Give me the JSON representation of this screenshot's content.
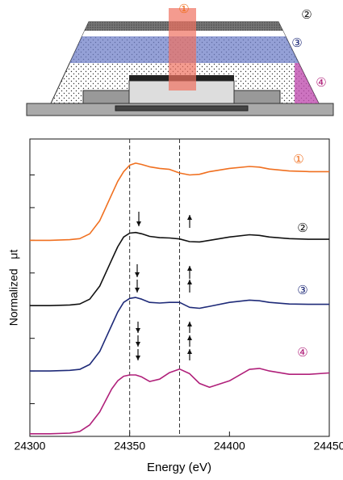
{
  "schematic": {
    "labels": [
      "①",
      "②",
      "③",
      "④"
    ]
  },
  "chart_data": {
    "type": "line",
    "x_label": "Energy (eV)",
    "y_label": "Normalized   μt",
    "x": [
      24300,
      24310,
      24320,
      24325,
      24330,
      24335,
      24338,
      24341,
      24344,
      24347,
      24350,
      24353,
      24356,
      24360,
      24365,
      24370,
      24375,
      24380,
      24385,
      24390,
      24400,
      24410,
      24415,
      24420,
      24430,
      24440,
      24450
    ],
    "series": [
      {
        "name": "①",
        "color": "#f07020",
        "values": [
          6.0,
          6.0,
          6.02,
          6.05,
          6.2,
          6.6,
          7.0,
          7.4,
          7.8,
          8.1,
          8.3,
          8.36,
          8.32,
          8.25,
          8.2,
          8.17,
          8.06,
          8.0,
          8.02,
          8.1,
          8.2,
          8.26,
          8.24,
          8.18,
          8.12,
          8.1,
          8.1
        ]
      },
      {
        "name": "②",
        "color": "#111111",
        "values": [
          4.0,
          4.0,
          4.02,
          4.05,
          4.2,
          4.6,
          5.0,
          5.4,
          5.8,
          6.1,
          6.22,
          6.24,
          6.2,
          6.12,
          6.08,
          6.07,
          6.04,
          5.96,
          5.95,
          6.0,
          6.1,
          6.17,
          6.15,
          6.1,
          6.05,
          6.03,
          6.03
        ]
      },
      {
        "name": "③",
        "color": "#1e2a78",
        "values": [
          2.0,
          2.0,
          2.02,
          2.05,
          2.2,
          2.6,
          3.0,
          3.4,
          3.8,
          4.1,
          4.22,
          4.25,
          4.2,
          4.1,
          4.08,
          4.1,
          4.1,
          3.95,
          3.92,
          3.98,
          4.1,
          4.17,
          4.15,
          4.1,
          4.05,
          4.04,
          4.04
        ]
      },
      {
        "name": "④",
        "color": "#b0207a",
        "values": [
          0.08,
          0.08,
          0.1,
          0.15,
          0.35,
          0.75,
          1.1,
          1.45,
          1.7,
          1.84,
          1.88,
          1.88,
          1.82,
          1.68,
          1.75,
          1.95,
          2.06,
          1.92,
          1.62,
          1.5,
          1.7,
          2.05,
          2.08,
          2.0,
          1.9,
          1.9,
          1.94
        ]
      }
    ],
    "xlim": [
      24300,
      24450
    ],
    "xticks": [
      24300,
      24350,
      24400,
      24450
    ],
    "ylim": [
      0,
      9.1
    ],
    "yticks": [
      1,
      2,
      3,
      4,
      5,
      6,
      7,
      8
    ],
    "vlines": [
      24350,
      24375
    ]
  }
}
